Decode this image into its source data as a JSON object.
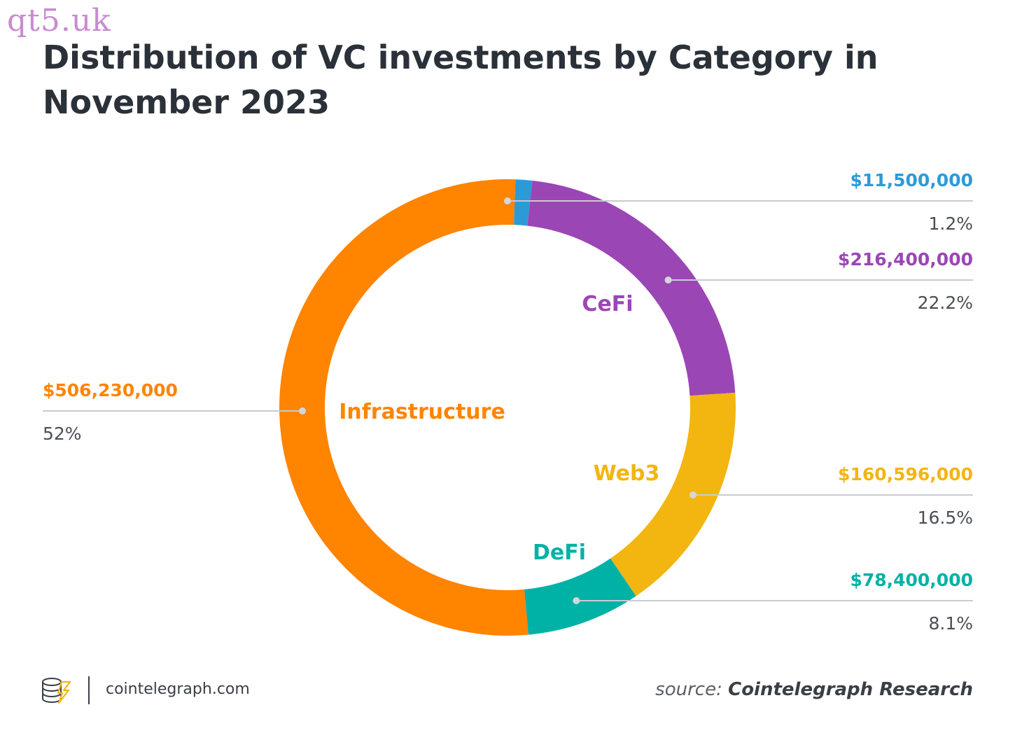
{
  "watermark": "qt5.uk",
  "title": "Distribution of VC investments by Category in November 2023",
  "footer": {
    "site": "cointelegraph.com",
    "source_prefix": "source:",
    "source_name": "Cointelegraph Research"
  },
  "chart_data": {
    "type": "pie",
    "title": "Distribution of VC investments by Category in November 2023",
    "categories": [
      "Infrastructure",
      "",
      "CeFi",
      "Web3",
      "DeFi"
    ],
    "values": [
      506230000,
      11500000,
      216400000,
      160596000,
      78400000
    ],
    "value_labels": [
      "$506,230,000",
      "$11,500,000",
      "$216,400,000",
      "$160,596,000",
      "$78,400,000"
    ],
    "percent_labels": [
      "52%",
      "1.2%",
      "22.2%",
      "16.5%",
      "8.1%"
    ],
    "colors": [
      "#ff8400",
      "#2d9ad8",
      "#9b46b5",
      "#f3b50f",
      "#00b2a5"
    ],
    "donut": true
  }
}
